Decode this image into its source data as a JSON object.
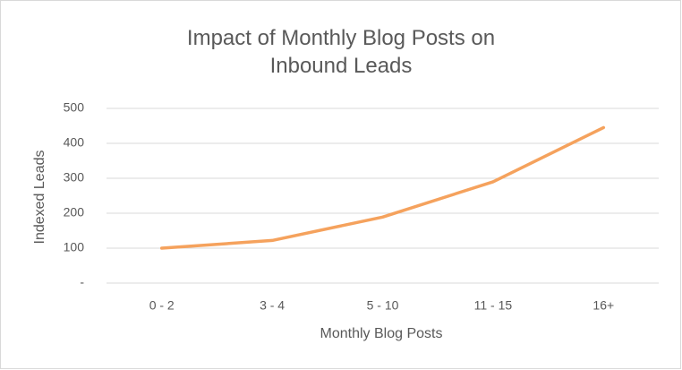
{
  "chart_data": {
    "type": "line",
    "title": "Impact of Monthly Blog Posts on Inbound Leads",
    "x_label": "Monthly Blog Posts",
    "y_label": "Indexed Leads",
    "categories": [
      "0 - 2",
      "3 - 4",
      "5 - 10",
      "11 - 15",
      "16+"
    ],
    "series": [
      {
        "name": "Indexed Leads",
        "color": "#f5a25d",
        "values": [
          100,
          122,
          189,
          290,
          445
        ]
      }
    ],
    "ylim": [
      0,
      500
    ],
    "yticks": [
      {
        "value": 0,
        "label": "-"
      },
      100,
      200,
      300,
      400,
      500
    ],
    "grid": true
  }
}
